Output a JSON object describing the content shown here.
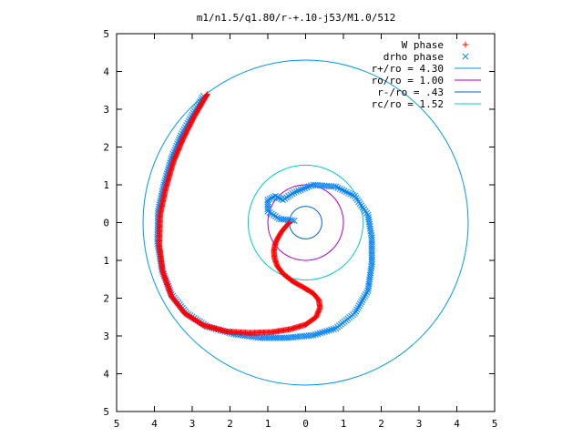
{
  "chart_data": {
    "type": "scatter",
    "title": "m1/n1.5/q1.80/r-+.10-j53/M1.0/512",
    "xlim": [
      -5,
      5
    ],
    "ylim": [
      -5,
      5
    ],
    "x_ticks": [
      -5,
      -4,
      -3,
      -2,
      -1,
      0,
      1,
      2,
      3,
      4,
      5
    ],
    "y_ticks": [
      -5,
      -4,
      -3,
      -2,
      -1,
      0,
      1,
      2,
      3,
      4,
      5
    ],
    "x_tick_labels": [
      "5",
      "4",
      "3",
      "2",
      "1",
      "0",
      "1",
      "2",
      "3",
      "4",
      "5"
    ],
    "y_tick_labels": [
      "5",
      "4",
      "3",
      "2",
      "1",
      "0",
      "1",
      "2",
      "3",
      "4",
      "5"
    ],
    "grid": false,
    "legend_position": "top-right",
    "legend": [
      {
        "label": "W phase",
        "kind": "point",
        "marker": "plus",
        "color": "#ff0000"
      },
      {
        "label": "drho phase",
        "kind": "point",
        "marker": "cross",
        "color": "#0080ff"
      },
      {
        "label": "r+/ro = 4.30",
        "kind": "line",
        "color": "#0099dd"
      },
      {
        "label": "ro/ro = 1.00",
        "kind": "line",
        "color": "#aa00cc"
      },
      {
        "label": "r-/ro = .43",
        "kind": "line",
        "color": "#0066cc"
      },
      {
        "label": "rc/ro = 1.52",
        "kind": "line",
        "color": "#00cccc"
      }
    ],
    "circles": [
      {
        "name": "r+/ro = 4.30",
        "radius": 4.3,
        "color": "#0099dd"
      },
      {
        "name": "ro/ro = 1.00",
        "radius": 1.0,
        "color": "#aa00cc"
      },
      {
        "name": "r-/ro = .43",
        "radius": 0.43,
        "color": "#0066cc"
      },
      {
        "name": "rc/ro = 1.52",
        "radius": 1.52,
        "color": "#00cccc"
      }
    ],
    "series": [
      {
        "name": "W phase",
        "marker": "plus",
        "color": "#ff0000",
        "points": [
          [
            -0.43,
            0.0
          ],
          [
            -0.52,
            -0.1
          ],
          [
            -0.62,
            -0.22
          ],
          [
            -0.72,
            -0.38
          ],
          [
            -0.8,
            -0.55
          ],
          [
            -0.84,
            -0.75
          ],
          [
            -0.82,
            -0.95
          ],
          [
            -0.75,
            -1.15
          ],
          [
            -0.6,
            -1.35
          ],
          [
            -0.35,
            -1.55
          ],
          [
            -0.05,
            -1.72
          ],
          [
            0.2,
            -1.87
          ],
          [
            0.35,
            -2.05
          ],
          [
            0.38,
            -2.25
          ],
          [
            0.28,
            -2.5
          ],
          [
            0.0,
            -2.7
          ],
          [
            -0.4,
            -2.82
          ],
          [
            -0.9,
            -2.9
          ],
          [
            -1.5,
            -2.92
          ],
          [
            -2.1,
            -2.88
          ],
          [
            -2.7,
            -2.72
          ],
          [
            -3.2,
            -2.4
          ],
          [
            -3.55,
            -1.95
          ],
          [
            -3.78,
            -1.3
          ],
          [
            -3.87,
            -0.6
          ],
          [
            -3.85,
            0.2
          ],
          [
            -3.7,
            0.9
          ],
          [
            -3.5,
            1.6
          ],
          [
            -3.25,
            2.2
          ],
          [
            -2.95,
            2.8
          ],
          [
            -2.6,
            3.4
          ]
        ]
      },
      {
        "name": "drho phase",
        "marker": "cross",
        "color": "#0080ff",
        "points": [
          [
            -0.3,
            0.05
          ],
          [
            -0.7,
            0.1
          ],
          [
            -1.0,
            0.3
          ],
          [
            -1.0,
            0.6
          ],
          [
            -0.8,
            0.7
          ],
          [
            -0.6,
            0.6
          ],
          [
            -0.3,
            0.8
          ],
          [
            0.2,
            1.0
          ],
          [
            0.8,
            0.95
          ],
          [
            1.3,
            0.7
          ],
          [
            1.65,
            0.2
          ],
          [
            1.75,
            -0.4
          ],
          [
            1.75,
            -1.1
          ],
          [
            1.65,
            -1.8
          ],
          [
            1.3,
            -2.4
          ],
          [
            0.8,
            -2.8
          ],
          [
            0.2,
            -2.98
          ],
          [
            -0.5,
            -3.05
          ],
          [
            -1.2,
            -3.05
          ],
          [
            -1.9,
            -2.95
          ],
          [
            -2.6,
            -2.75
          ],
          [
            -3.15,
            -2.4
          ],
          [
            -3.55,
            -1.9
          ],
          [
            -3.8,
            -1.25
          ],
          [
            -3.92,
            -0.5
          ],
          [
            -3.9,
            0.3
          ],
          [
            -3.75,
            1.0
          ],
          [
            -3.55,
            1.7
          ],
          [
            -3.3,
            2.3
          ],
          [
            -3.0,
            2.85
          ],
          [
            -2.7,
            3.35
          ]
        ]
      }
    ]
  }
}
